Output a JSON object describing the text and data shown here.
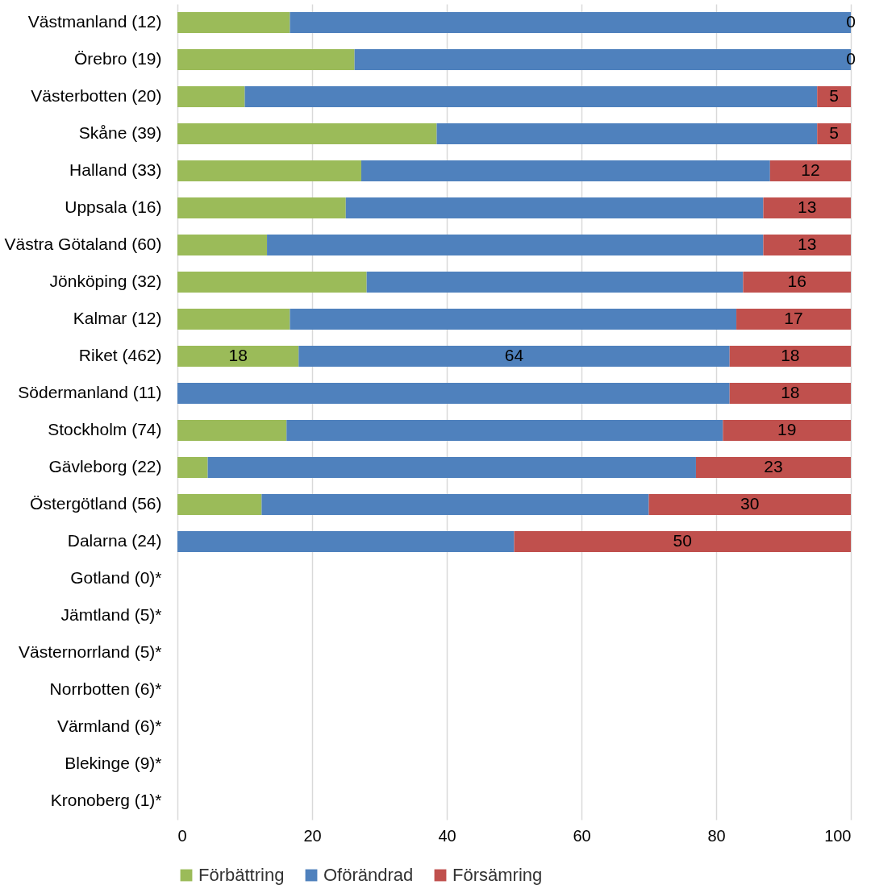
{
  "chart_data": {
    "type": "bar",
    "orientation": "horizontal",
    "stacked": true,
    "categories": [
      "Västmanland (12)",
      "Örebro (19)",
      "Västerbotten (20)",
      "Skåne (39)",
      "Halland (33)",
      "Uppsala (16)",
      "Västra Götaland (60)",
      "Jönköping (32)",
      "Kalmar (12)",
      "Riket (462)",
      "Södermanland (11)",
      "Stockholm (74)",
      "Gävleborg (22)",
      "Östergötland (56)",
      "Dalarna (24)",
      "Gotland (0)*",
      "Jämtland (5)*",
      "Västernorrland (5)*",
      "Norrbotten (6)*",
      "Värmland (6)*",
      "Blekinge (9)*",
      "Kronoberg (1)*"
    ],
    "series": [
      {
        "name": "Förbättring",
        "color": "#9bbb59",
        "values": [
          16.7,
          26.3,
          10,
          38.5,
          27.3,
          25,
          13.3,
          28.1,
          16.7,
          18,
          0,
          16.2,
          4.5,
          12.5,
          0,
          null,
          null,
          null,
          null,
          null,
          null,
          null
        ],
        "value_labels": [
          null,
          null,
          null,
          null,
          null,
          null,
          null,
          null,
          null,
          "18",
          null,
          null,
          null,
          null,
          null,
          null,
          null,
          null,
          null,
          null,
          null,
          null
        ]
      },
      {
        "name": "Oförändrad",
        "color": "#4f81bd",
        "values": [
          83.3,
          73.7,
          85,
          56.5,
          60.7,
          62,
          73.7,
          55.9,
          66.3,
          64,
          82,
          64.8,
          72.5,
          57.5,
          50,
          null,
          null,
          null,
          null,
          null,
          null,
          null
        ],
        "value_labels": [
          null,
          null,
          null,
          null,
          null,
          null,
          null,
          null,
          null,
          "64",
          null,
          null,
          null,
          null,
          null,
          null,
          null,
          null,
          null,
          null,
          null,
          null
        ]
      },
      {
        "name": "Försämring",
        "color": "#c0504d",
        "values": [
          0,
          0,
          5,
          5,
          12,
          13,
          13,
          16,
          17,
          18,
          18,
          19,
          23,
          30,
          50,
          null,
          null,
          null,
          null,
          null,
          null,
          null
        ],
        "value_labels": [
          "0",
          "0",
          "5",
          "5",
          "12",
          "13",
          "13",
          "16",
          "17",
          "18",
          "18",
          "19",
          "23",
          "30",
          "50",
          null,
          null,
          null,
          null,
          null,
          null,
          null
        ]
      }
    ],
    "xlim": [
      0,
      100
    ],
    "xticks": [
      0,
      20,
      40,
      60,
      80,
      100
    ],
    "grid": "x",
    "legend": "bottom"
  }
}
